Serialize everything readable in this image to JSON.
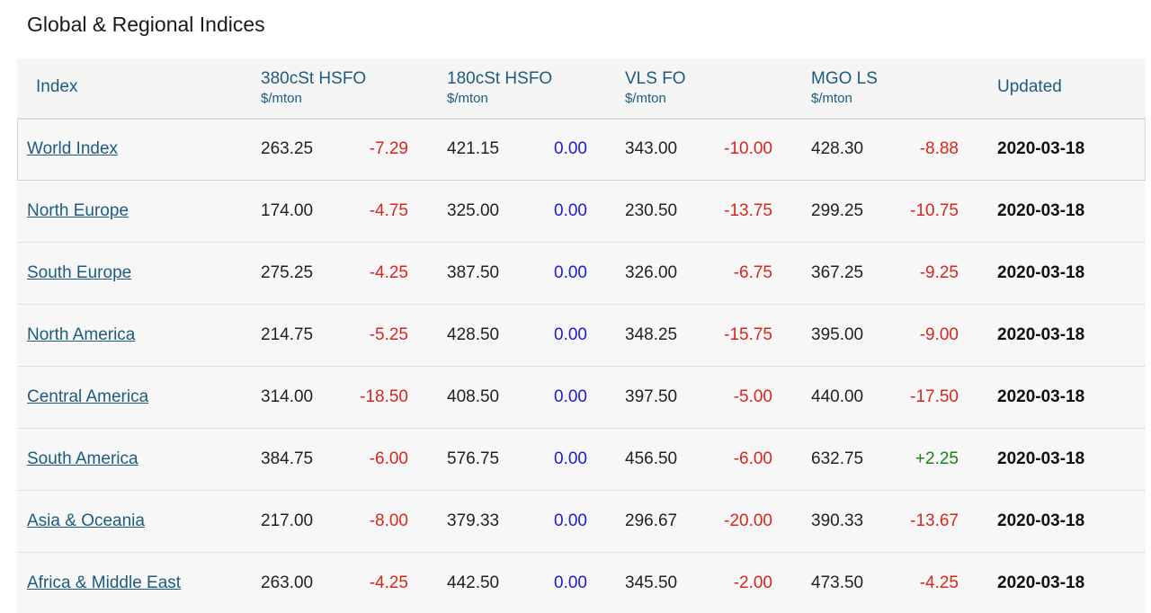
{
  "title": "Global & Regional Indices",
  "columns": {
    "index": "Index",
    "hsfo380": {
      "name": "380cSt HSFO",
      "unit": "$/mton"
    },
    "hsfo180": {
      "name": "180cSt HSFO",
      "unit": "$/mton"
    },
    "vlsfo": {
      "name": "VLS FO",
      "unit": "$/mton"
    },
    "mgols": {
      "name": "MGO LS",
      "unit": "$/mton"
    },
    "updated": "Updated"
  },
  "colors": {
    "header_text": "#1d5c7e",
    "negative": "#d7261e",
    "zero": "#1b1bcf",
    "positive": "#168316"
  },
  "rows": [
    {
      "name": "World Index",
      "hsfo380": "263.25",
      "hsfo380_chg": "-7.29",
      "hsfo180": "421.15",
      "hsfo180_chg": "0.00",
      "vlsfo": "343.00",
      "vlsfo_chg": "-10.00",
      "mgols": "428.30",
      "mgols_chg": "-8.88",
      "updated": "2020-03-18"
    },
    {
      "name": "North Europe",
      "hsfo380": "174.00",
      "hsfo380_chg": "-4.75",
      "hsfo180": "325.00",
      "hsfo180_chg": "0.00",
      "vlsfo": "230.50",
      "vlsfo_chg": "-13.75",
      "mgols": "299.25",
      "mgols_chg": "-10.75",
      "updated": "2020-03-18"
    },
    {
      "name": "South Europe",
      "hsfo380": "275.25",
      "hsfo380_chg": "-4.25",
      "hsfo180": "387.50",
      "hsfo180_chg": "0.00",
      "vlsfo": "326.00",
      "vlsfo_chg": "-6.75",
      "mgols": "367.25",
      "mgols_chg": "-9.25",
      "updated": "2020-03-18"
    },
    {
      "name": "North America",
      "hsfo380": "214.75",
      "hsfo380_chg": "-5.25",
      "hsfo180": "428.50",
      "hsfo180_chg": "0.00",
      "vlsfo": "348.25",
      "vlsfo_chg": "-15.75",
      "mgols": "395.00",
      "mgols_chg": "-9.00",
      "updated": "2020-03-18"
    },
    {
      "name": "Central America",
      "hsfo380": "314.00",
      "hsfo380_chg": "-18.50",
      "hsfo180": "408.50",
      "hsfo180_chg": "0.00",
      "vlsfo": "397.50",
      "vlsfo_chg": "-5.00",
      "mgols": "440.00",
      "mgols_chg": "-17.50",
      "updated": "2020-03-18"
    },
    {
      "name": "South America",
      "hsfo380": "384.75",
      "hsfo380_chg": "-6.00",
      "hsfo180": "576.75",
      "hsfo180_chg": "0.00",
      "vlsfo": "456.50",
      "vlsfo_chg": "-6.00",
      "mgols": "632.75",
      "mgols_chg": "+2.25",
      "updated": "2020-03-18"
    },
    {
      "name": "Asia & Oceania",
      "hsfo380": "217.00",
      "hsfo380_chg": "-8.00",
      "hsfo180": "379.33",
      "hsfo180_chg": "0.00",
      "vlsfo": "296.67",
      "vlsfo_chg": "-20.00",
      "mgols": "390.33",
      "mgols_chg": "-13.67",
      "updated": "2020-03-18"
    },
    {
      "name": "Africa & Middle East",
      "hsfo380": "263.00",
      "hsfo380_chg": "-4.25",
      "hsfo180": "442.50",
      "hsfo180_chg": "0.00",
      "vlsfo": "345.50",
      "vlsfo_chg": "-2.00",
      "mgols": "473.50",
      "mgols_chg": "-4.25",
      "updated": "2020-03-18"
    }
  ]
}
